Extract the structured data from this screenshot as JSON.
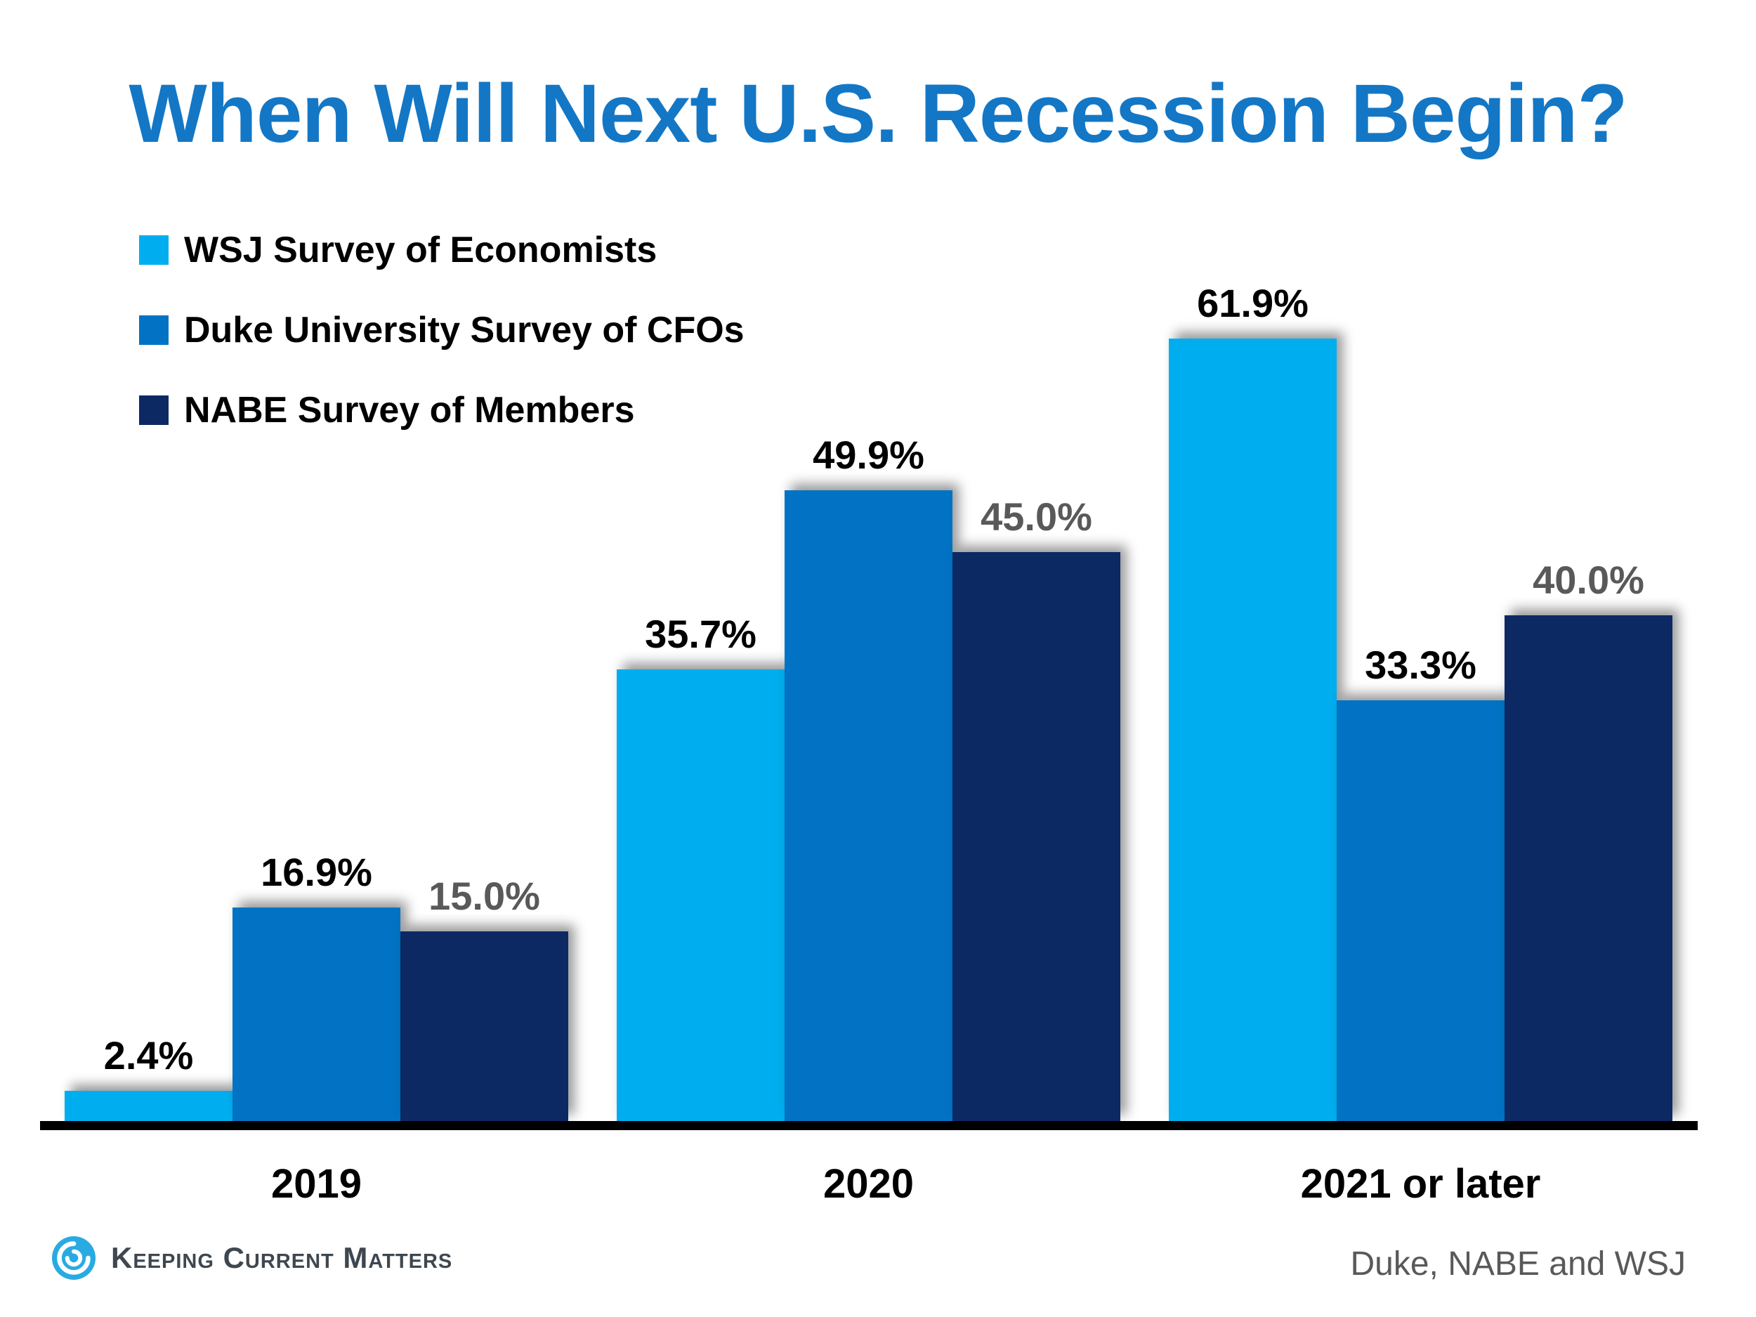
{
  "title": "When Will Next U.S. Recession Begin?",
  "title_color": "#1377C6",
  "legend": [
    {
      "label": "WSJ Survey of Economists",
      "color": "#00AEEF"
    },
    {
      "label": "Duke University Survey of CFOs",
      "color": "#0273C4"
    },
    {
      "label": "NABE Survey of Members",
      "color": "#0C2963"
    }
  ],
  "chart_data": {
    "type": "bar",
    "title": "When Will Next U.S. Recession Begin?",
    "categories": [
      "2019",
      "2020",
      "2021 or later"
    ],
    "series": [
      {
        "name": "WSJ Survey of Economists",
        "color": "#00AEEF",
        "label_color": "#000000",
        "values": [
          2.4,
          35.7,
          61.9
        ],
        "labels": [
          "2.4%",
          "35.7%",
          "61.9%"
        ]
      },
      {
        "name": "Duke University Survey of CFOs",
        "color": "#0273C4",
        "label_color": "#000000",
        "values": [
          16.9,
          49.9,
          33.3
        ],
        "labels": [
          "16.9%",
          "49.9%",
          "33.3%"
        ]
      },
      {
        "name": "NABE Survey of Members",
        "color": "#0C2963",
        "label_color": "#595959",
        "values": [
          15.0,
          45.0,
          40.0
        ],
        "labels": [
          "15.0%",
          "45.0%",
          "40.0%"
        ]
      }
    ],
    "ylim": [
      0,
      70
    ],
    "grid": false,
    "legend_position": "top-left",
    "axis_line_color": "#000000",
    "data_labels_shown": true
  },
  "footer": {
    "brand": "Keeping Current Matters",
    "brand_color": "#3E474F",
    "logo_color": "#29ABE2",
    "source": "Duke, NABE and WSJ",
    "source_color": "#595959"
  }
}
